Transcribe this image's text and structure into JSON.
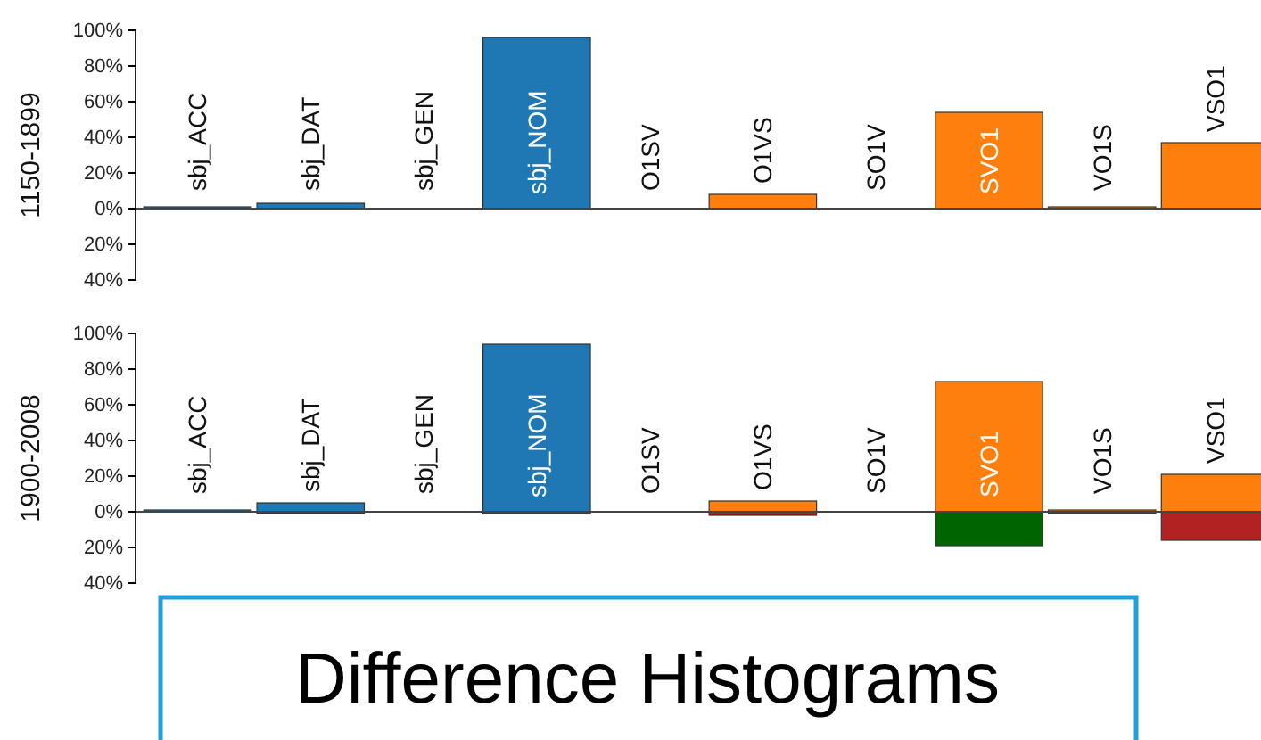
{
  "chart_data": [
    {
      "type": "bar",
      "ylabel": "1150-1899",
      "categories": [
        "sbj_ACC",
        "sbj_DAT",
        "sbj_GEN",
        "sbj_NOM",
        "O1SV",
        "O1VS",
        "SO1V",
        "SVO1",
        "VO1S",
        "VSO1"
      ],
      "series": [
        {
          "colors": [
            "#1f77b4",
            "#1f77b4",
            null,
            "#1f77b4",
            null,
            "#ff7f0e",
            null,
            "#ff7f0e",
            "#ff7f0e",
            "#ff7f0e"
          ],
          "values": [
            1,
            3,
            null,
            96,
            null,
            8,
            null,
            54,
            1,
            37
          ]
        }
      ],
      "ylim": [
        -40,
        100
      ],
      "yticks": [
        {
          "value": -40,
          "label": "40%"
        },
        {
          "value": -20,
          "label": "20%"
        },
        {
          "value": 0,
          "label": "0%"
        },
        {
          "value": 20,
          "label": "20%"
        },
        {
          "value": 40,
          "label": "40%"
        },
        {
          "value": 60,
          "label": "60%"
        },
        {
          "value": 80,
          "label": "80%"
        },
        {
          "value": 100,
          "label": "100%"
        }
      ]
    },
    {
      "type": "bar",
      "ylabel": "1900-2008",
      "stacked": true,
      "categories": [
        "sbj_ACC",
        "sbj_DAT",
        "sbj_GEN",
        "sbj_NOM",
        "O1SV",
        "O1VS",
        "SO1V",
        "SVO1",
        "VO1S",
        "VSO1"
      ],
      "series": [
        {
          "colors": [
            "#1f77b4",
            "#1f77b4",
            null,
            "#1f77b4",
            null,
            "#ff7f0e",
            null,
            "#ff7f0e",
            "#ff7f0e",
            "#ff7f0e"
          ],
          "values": [
            1,
            5,
            null,
            94,
            null,
            6,
            null,
            73,
            1,
            21
          ]
        },
        {
          "colors": [
            null,
            "#006400",
            null,
            "#b22222",
            null,
            "#b22222",
            null,
            "#006400",
            "#b22222",
            "#b22222"
          ],
          "values": [
            null,
            -1,
            null,
            -1,
            null,
            -2,
            null,
            -19,
            -1,
            -16
          ]
        }
      ],
      "ylim": [
        -40,
        100
      ],
      "yticks": [
        {
          "value": -40,
          "label": "40%"
        },
        {
          "value": -20,
          "label": "20%"
        },
        {
          "value": 0,
          "label": "0%"
        },
        {
          "value": 20,
          "label": "20%"
        },
        {
          "value": 40,
          "label": "40%"
        },
        {
          "value": 60,
          "label": "60%"
        },
        {
          "value": 80,
          "label": "80%"
        },
        {
          "value": 100,
          "label": "100%"
        }
      ],
      "annotations": [
        "Difference Histograms"
      ]
    }
  ]
}
